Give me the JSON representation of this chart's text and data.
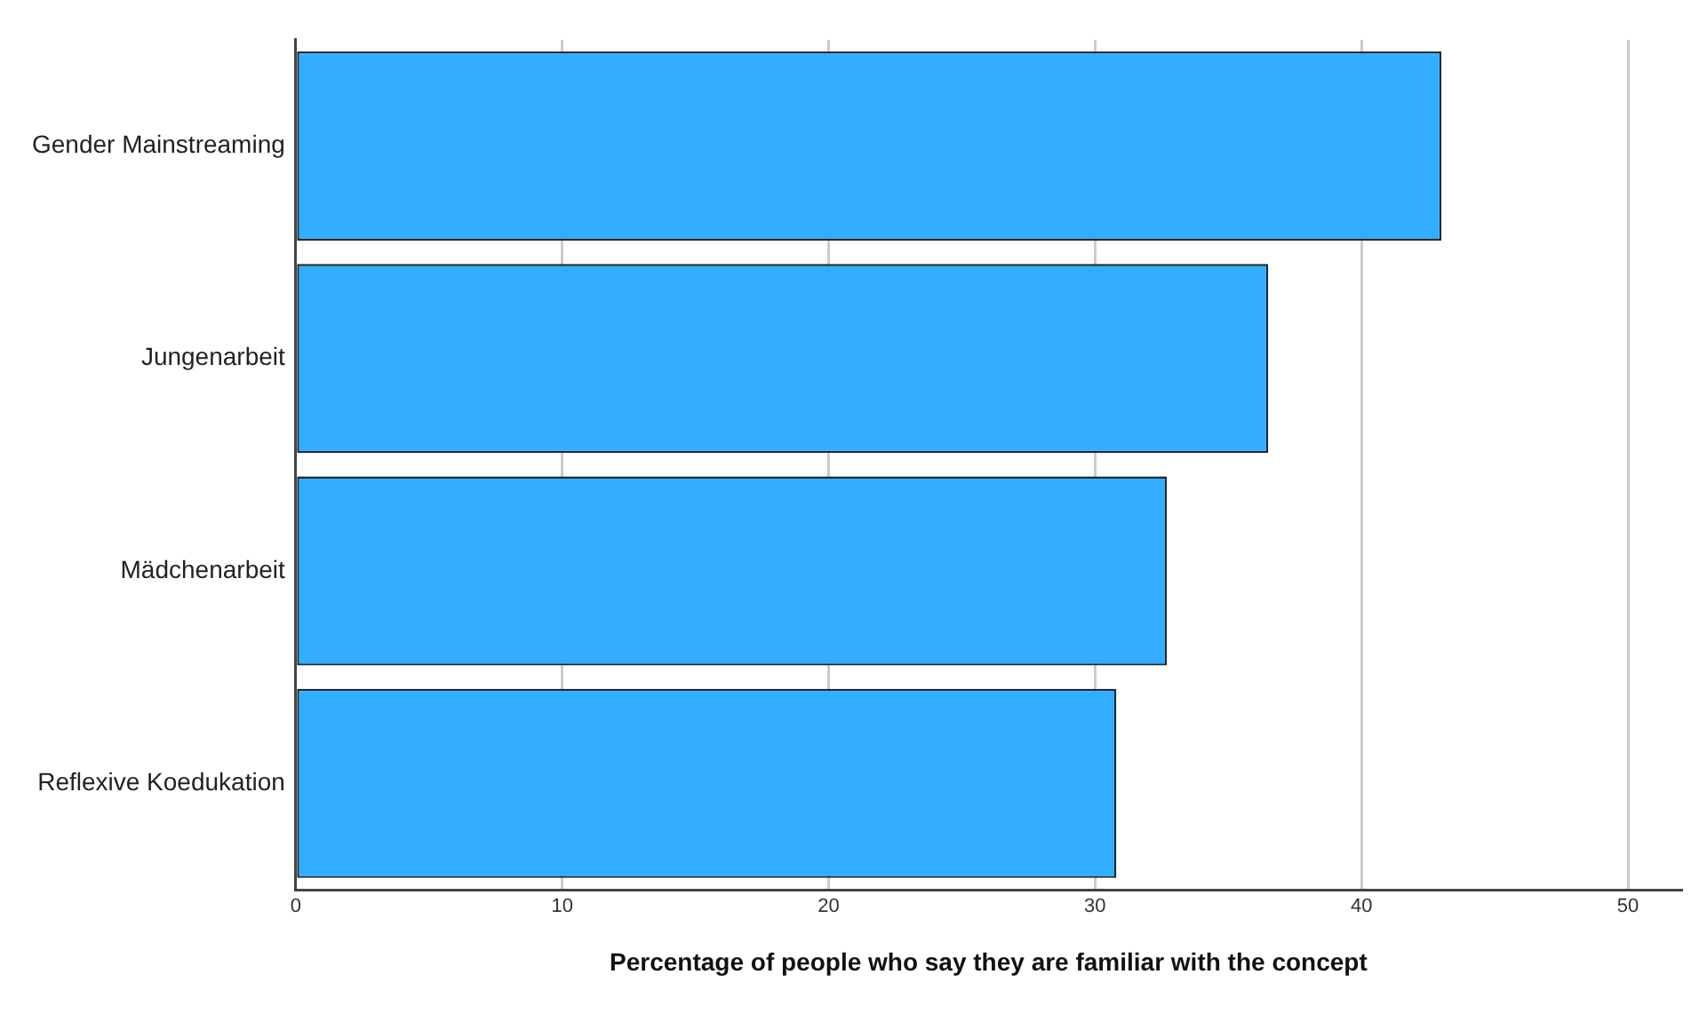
{
  "chart_data": {
    "type": "bar",
    "orientation": "horizontal",
    "xlabel": "Percentage of people who say they are familiar with the concept",
    "categories": [
      "Gender Mainstreaming",
      "Jungenarbeit",
      "Mädchenarbeit",
      "Reflexive Koedukation"
    ],
    "values": [
      43.0,
      36.5,
      32.7,
      30.8
    ],
    "color": "#33adff",
    "xlim": [
      0,
      52
    ],
    "xticks": [
      0,
      10,
      20,
      30,
      40,
      50
    ],
    "grid": "x",
    "legend": false
  }
}
